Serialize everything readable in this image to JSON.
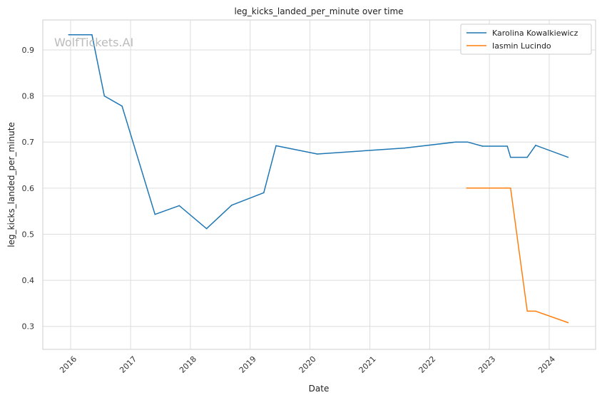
{
  "watermark": "WolfTickets.AI",
  "chart_data": {
    "type": "line",
    "title": "leg_kicks_landed_per_minute over time",
    "xlabel": "Date",
    "ylabel": "leg_kicks_landed_per_minute",
    "x_ticks": [
      "2016",
      "2017",
      "2018",
      "2019",
      "2020",
      "2021",
      "2022",
      "2023",
      "2024"
    ],
    "y_ticks": [
      "0.3",
      "0.4",
      "0.5",
      "0.6",
      "0.7",
      "0.8",
      "0.9"
    ],
    "xlim": [
      "2015-07-15",
      "2024-10-10"
    ],
    "ylim": [
      0.25,
      0.965
    ],
    "grid": true,
    "legend_position": "top-right",
    "series": [
      {
        "name": "Karolina Kowalkiewicz",
        "color": "#1f77b4",
        "points": [
          [
            "2015-12-20",
            0.933
          ],
          [
            "2016-05-10",
            0.933
          ],
          [
            "2016-07-25",
            0.8
          ],
          [
            "2016-11-10",
            0.778
          ],
          [
            "2017-05-30",
            0.543
          ],
          [
            "2017-10-25",
            0.562
          ],
          [
            "2018-04-10",
            0.512
          ],
          [
            "2018-09-10",
            0.563
          ],
          [
            "2019-03-25",
            0.59
          ],
          [
            "2019-06-08",
            0.692
          ],
          [
            "2020-02-15",
            0.674
          ],
          [
            "2021-08-01",
            0.687
          ],
          [
            "2022-06-10",
            0.7
          ],
          [
            "2022-08-20",
            0.7
          ],
          [
            "2022-11-20",
            0.691
          ],
          [
            "2023-04-20",
            0.691
          ],
          [
            "2023-05-10",
            0.667
          ],
          [
            "2023-08-20",
            0.667
          ],
          [
            "2023-10-10",
            0.693
          ],
          [
            "2024-04-25",
            0.667
          ]
        ]
      },
      {
        "name": "Iasmin Lucindo",
        "color": "#ff7f0e",
        "points": [
          [
            "2022-08-15",
            0.6
          ],
          [
            "2023-05-10",
            0.6
          ],
          [
            "2023-08-20",
            0.333
          ],
          [
            "2023-10-10",
            0.333
          ],
          [
            "2024-04-25",
            0.308
          ]
        ]
      }
    ]
  }
}
